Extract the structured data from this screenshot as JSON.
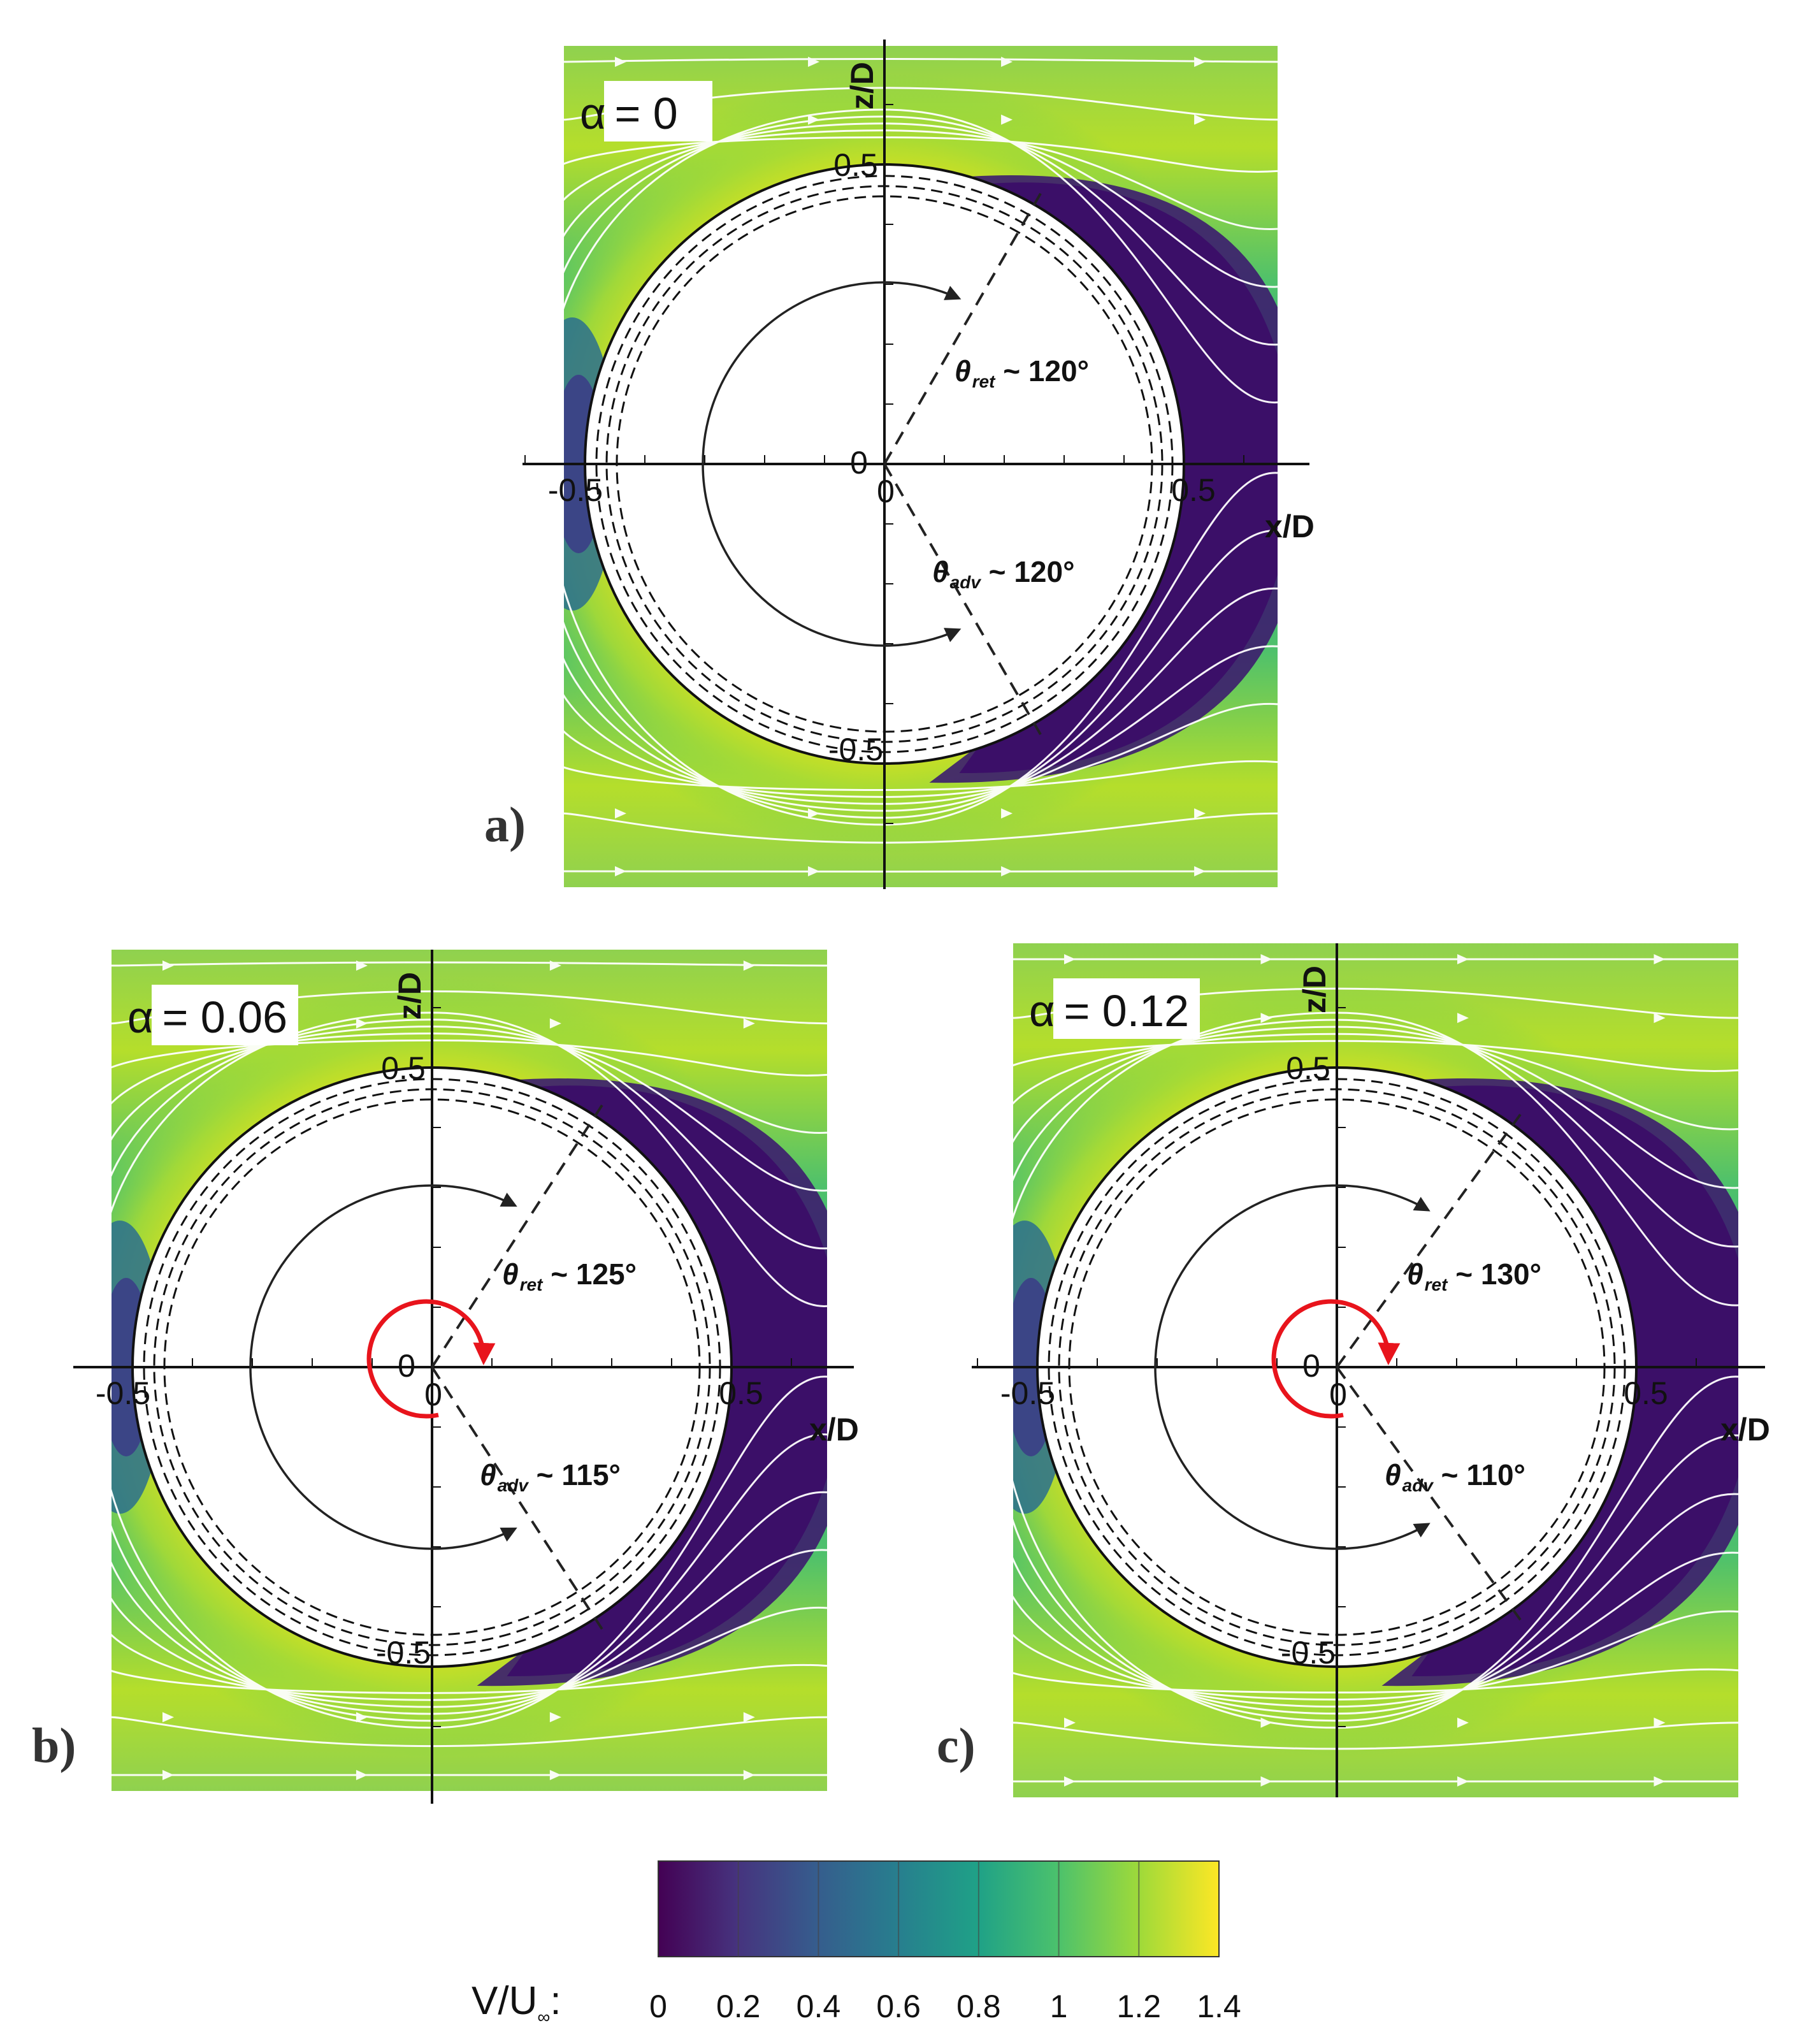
{
  "panels": [
    {
      "id": "a",
      "tag": "a)",
      "alpha_symbol": "α",
      "alpha_value": "= 0",
      "axis_x_name": "x/D",
      "axis_z_name": "z/D",
      "ticks": {
        "zero": "0",
        "neg_x": "-0.5",
        "pos_x": "0.5",
        "pos_z": "0.5",
        "neg_z": "-0.5"
      },
      "theta_ret": {
        "symbol": "θ",
        "sub": "ret",
        "value": " ~ 120°"
      },
      "theta_adv": {
        "symbol": "θ",
        "sub": "adv",
        "value": " ~ 120°"
      },
      "rotation_arrow": false,
      "theta_ret_deg": 120,
      "theta_adv_deg": 120
    },
    {
      "id": "b",
      "tag": "b)",
      "alpha_symbol": "α",
      "alpha_value": "= 0.06",
      "axis_x_name": "x/D",
      "axis_z_name": "z/D",
      "ticks": {
        "zero": "0",
        "neg_x": "-0.5",
        "pos_x": "0.5",
        "pos_z": "0.5",
        "neg_z": "-0.5"
      },
      "theta_ret": {
        "symbol": "θ",
        "sub": "ret",
        "value": " ~ 125°"
      },
      "theta_adv": {
        "symbol": "θ",
        "sub": "adv",
        "value": " ~ 115°"
      },
      "rotation_arrow": true,
      "theta_ret_deg": 125,
      "theta_adv_deg": 115
    },
    {
      "id": "c",
      "tag": "c)",
      "alpha_symbol": "α",
      "alpha_value": "= 0.12",
      "axis_x_name": "x/D",
      "axis_z_name": "z/D",
      "ticks": {
        "zero": "0",
        "neg_x": "-0.5",
        "pos_x": "0.5",
        "pos_z": "0.5",
        "neg_z": "-0.5"
      },
      "theta_ret": {
        "symbol": "θ",
        "sub": "ret",
        "value": " ~ 130°"
      },
      "theta_adv": {
        "symbol": "θ",
        "sub": "adv",
        "value": " ~ 110°"
      },
      "rotation_arrow": true,
      "theta_ret_deg": 130,
      "theta_adv_deg": 110
    }
  ],
  "colorbar": {
    "title_main": "V/U",
    "title_sub": "∞",
    "title_colon": ":",
    "ticks": [
      "0",
      "0.2",
      "0.4",
      "0.6",
      "0.8",
      "1",
      "1.2",
      "1.4"
    ],
    "range": [
      0,
      1.4
    ],
    "colors": [
      "#440154",
      "#3b528b",
      "#21918c",
      "#5ec962",
      "#a8db34",
      "#fde725"
    ]
  },
  "colors": {
    "rotation_arrow": "#e8141c",
    "streamline": "#ffffff",
    "annotation": "#222222"
  }
}
